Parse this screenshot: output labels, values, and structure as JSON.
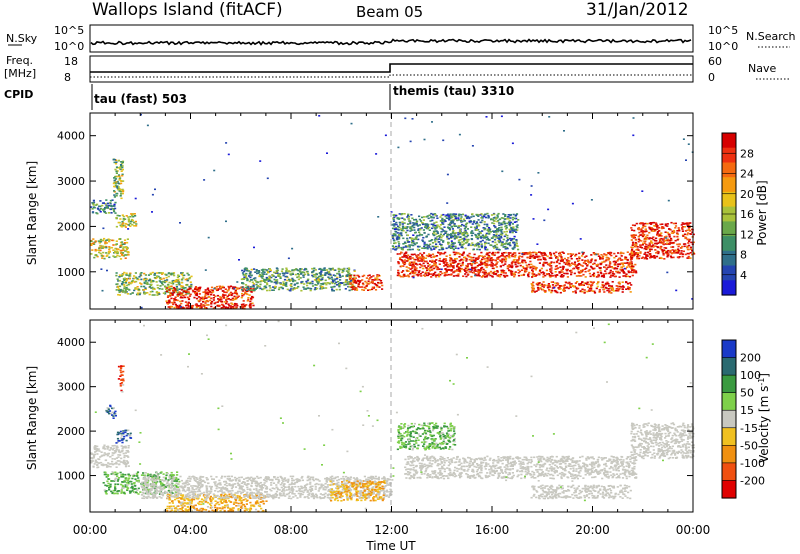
{
  "header": {
    "station": "Wallops Island (fitACF)",
    "beam": "Beam 05",
    "date": "31/Jan/2012"
  },
  "strip_labels": {
    "nsky": "N.Sky",
    "nsky_ticks": [
      "10^5",
      "10^0"
    ],
    "nsearch": "N.Search",
    "nsearch_ticks": [
      "10^5",
      "10^0"
    ],
    "freq_line1": "Freq.",
    "freq_line2": "[MHz]",
    "freq_ticks": [
      "18",
      "8"
    ],
    "nave": "Nave",
    "nave_ticks": [
      "60",
      "0"
    ],
    "cpid": "CPID",
    "mode1": "tau (fast) 503",
    "mode2": "themis (tau) 3310"
  },
  "chart_data": [
    {
      "type": "heatmap",
      "title": "",
      "xlabel": "Time UT",
      "ylabel": "Slant Range [km]",
      "xlim": [
        0,
        24
      ],
      "ylim": [
        180,
        4500
      ],
      "x_ticks": [
        "00:00",
        "04:00",
        "08:00",
        "12:00",
        "16:00",
        "20:00",
        "00:00"
      ],
      "y_ticks": [
        "1000",
        "2000",
        "3000",
        "4000"
      ],
      "colorbar": {
        "label": "Power [dB]",
        "ticks": [
          "4",
          "8",
          "12",
          "16",
          "20",
          "24",
          "28"
        ],
        "colors": [
          "#1a1ad8",
          "#2444b0",
          "#2f6f8a",
          "#3d8f66",
          "#6aa84a",
          "#a9c23a",
          "#e8c21a",
          "#f59a10",
          "#f56a10",
          "#ee3010",
          "#d60000"
        ]
      },
      "echo_bands": [
        {
          "t0": 0.0,
          "t1": 1.5,
          "r0": 1300,
          "r1": 1750,
          "level": 0.55
        },
        {
          "t0": 1.0,
          "t1": 1.8,
          "r0": 2000,
          "r1": 2300,
          "level": 0.5
        },
        {
          "t0": 0.9,
          "t1": 1.3,
          "r0": 2600,
          "r1": 3500,
          "level": 0.45
        },
        {
          "t0": 0.0,
          "t1": 1.0,
          "r0": 2300,
          "r1": 2600,
          "level": 0.3
        },
        {
          "t0": 1.0,
          "t1": 4.0,
          "r0": 500,
          "r1": 1000,
          "level": 0.45
        },
        {
          "t0": 3.0,
          "t1": 6.5,
          "r0": 200,
          "r1": 700,
          "level": 0.9
        },
        {
          "t0": 6.0,
          "t1": 10.5,
          "r0": 600,
          "r1": 1100,
          "level": 0.35
        },
        {
          "t0": 10.3,
          "t1": 11.6,
          "r0": 600,
          "r1": 950,
          "level": 0.85
        },
        {
          "t0": 12.2,
          "t1": 21.7,
          "r0": 900,
          "r1": 1450,
          "level": 0.9
        },
        {
          "t0": 17.5,
          "t1": 21.5,
          "r0": 550,
          "r1": 800,
          "level": 0.85
        },
        {
          "t0": 21.5,
          "t1": 24.0,
          "r0": 1300,
          "r1": 2100,
          "level": 0.9
        },
        {
          "t0": 12.0,
          "t1": 17.0,
          "r0": 1500,
          "r1": 2300,
          "level": 0.3
        }
      ]
    },
    {
      "type": "heatmap",
      "title": "",
      "xlabel": "Time UT",
      "ylabel": "Slant Range [km]",
      "xlim": [
        0,
        24
      ],
      "ylim": [
        180,
        4500
      ],
      "x_ticks": [
        "00:00",
        "04:00",
        "08:00",
        "12:00",
        "16:00",
        "20:00",
        "00:00"
      ],
      "y_ticks": [
        "1000",
        "2000",
        "3000",
        "4000"
      ],
      "colorbar": {
        "label_main": "Velocity [m s",
        "label_sup": "-1",
        "label_end": "]",
        "ticks": [
          "200",
          "100",
          "50",
          "15",
          "-15",
          "-50",
          "-100",
          "-200"
        ],
        "colors": [
          "#1a3ac8",
          "#2a6a70",
          "#3a9a40",
          "#7ed04a",
          "#c8c8c0",
          "#f0c020",
          "#f09010",
          "#f05010",
          "#e00000"
        ]
      },
      "echo_bands": [
        {
          "t0": 0.0,
          "t1": 1.5,
          "r0": 1200,
          "r1": 1700,
          "class": "gray"
        },
        {
          "t0": 0.6,
          "t1": 1.0,
          "r0": 2300,
          "r1": 2600,
          "class": "blue"
        },
        {
          "t0": 1.0,
          "t1": 1.6,
          "r0": 1750,
          "r1": 2050,
          "class": "blue"
        },
        {
          "t0": 1.1,
          "t1": 1.3,
          "r0": 2900,
          "r1": 3500,
          "class": "red"
        },
        {
          "t0": 0.5,
          "t1": 3.5,
          "r0": 600,
          "r1": 1100,
          "class": "green"
        },
        {
          "t0": 3.0,
          "t1": 7.0,
          "r0": 200,
          "r1": 600,
          "class": "orange"
        },
        {
          "t0": 2.0,
          "t1": 12.0,
          "r0": 500,
          "r1": 1000,
          "class": "gray"
        },
        {
          "t0": 9.5,
          "t1": 11.7,
          "r0": 450,
          "r1": 900,
          "class": "orange"
        },
        {
          "t0": 12.5,
          "t1": 21.7,
          "r0": 950,
          "r1": 1450,
          "class": "gray"
        },
        {
          "t0": 17.5,
          "t1": 21.5,
          "r0": 500,
          "r1": 800,
          "class": "gray"
        },
        {
          "t0": 21.5,
          "t1": 24.0,
          "r0": 1400,
          "r1": 2200,
          "class": "gray"
        },
        {
          "t0": 12.2,
          "t1": 14.5,
          "r0": 1600,
          "r1": 2200,
          "class": "green"
        }
      ]
    }
  ]
}
